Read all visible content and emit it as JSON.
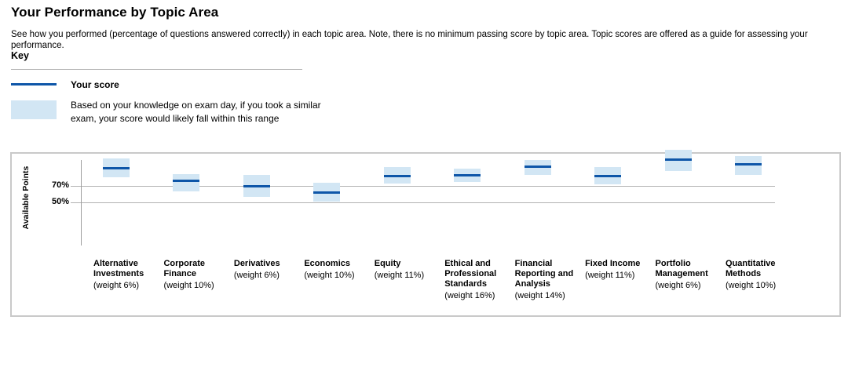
{
  "page": {
    "title": "Your Performance by Topic Area",
    "description": "See how you performed (percentage of questions answered correctly) in each topic area. Note, there is no minimum passing score by topic area. Topic scores are offered as a guide for assessing your performance."
  },
  "key": {
    "heading": "Key",
    "score_label": "Your score",
    "range_label": "Based on your knowledge on exam day, if you took a similar exam, your score would likely fall within this range"
  },
  "chart_data": {
    "type": "range-bar",
    "title": "",
    "xlabel": "",
    "ylabel": "Available Points",
    "yticks": [
      70,
      50
    ],
    "ytick_labels": [
      "70%",
      "50%"
    ],
    "grid": true,
    "colors": {
      "score_line": "#0e56a8",
      "range_box": "#d2e6f4",
      "gridline": "#b2b2b2",
      "axis": "#9e9e9e"
    },
    "topics": [
      {
        "name": "Alternative Investments",
        "weight": "(weight 6%)",
        "score": 91,
        "range_low": 80,
        "range_high": 103
      },
      {
        "name": "Corporate Finance",
        "weight": "(weight 10%)",
        "score": 76,
        "range_low": 63,
        "range_high": 84
      },
      {
        "name": "Derivatives",
        "weight": "(weight 6%)",
        "score": 70,
        "range_low": 57,
        "range_high": 83
      },
      {
        "name": "Economics",
        "weight": "(weight 10%)",
        "score": 62,
        "range_low": 51,
        "range_high": 74
      },
      {
        "name": "Equity",
        "weight": "(weight 11%)",
        "score": 82,
        "range_low": 73,
        "range_high": 93
      },
      {
        "name": "Ethical and Professional Standards",
        "weight": "(weight 16%)",
        "score": 83,
        "range_low": 75,
        "range_high": 91
      },
      {
        "name": "Financial Reporting and Analysis",
        "weight": "(weight 14%)",
        "score": 93,
        "range_low": 83,
        "range_high": 101
      },
      {
        "name": "Fixed Income",
        "weight": "(weight 11%)",
        "score": 82,
        "range_low": 72,
        "range_high": 93
      },
      {
        "name": "Portfolio Management",
        "weight": "(weight 6%)",
        "score": 102,
        "range_low": 88,
        "range_high": 114
      },
      {
        "name": "Quantitative Methods",
        "weight": "(weight 10%)",
        "score": 96,
        "range_low": 83,
        "range_high": 106
      }
    ]
  }
}
